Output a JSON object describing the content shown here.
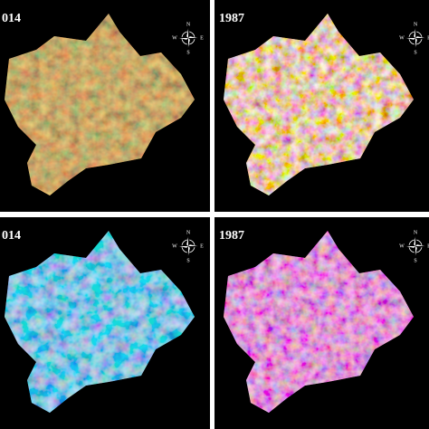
{
  "panels": [
    {
      "label": "014",
      "compass": {
        "n": "N",
        "e": "E",
        "s": "S",
        "w": "W"
      }
    },
    {
      "label": "1987",
      "compass": {
        "n": "N",
        "e": "E",
        "s": "S",
        "w": "W"
      }
    },
    {
      "label": "014",
      "compass": {
        "n": "N",
        "e": "E",
        "s": "S",
        "w": "W"
      }
    },
    {
      "label": "1987",
      "compass": {
        "n": "N",
        "e": "E",
        "s": "S",
        "w": "W"
      }
    }
  ]
}
